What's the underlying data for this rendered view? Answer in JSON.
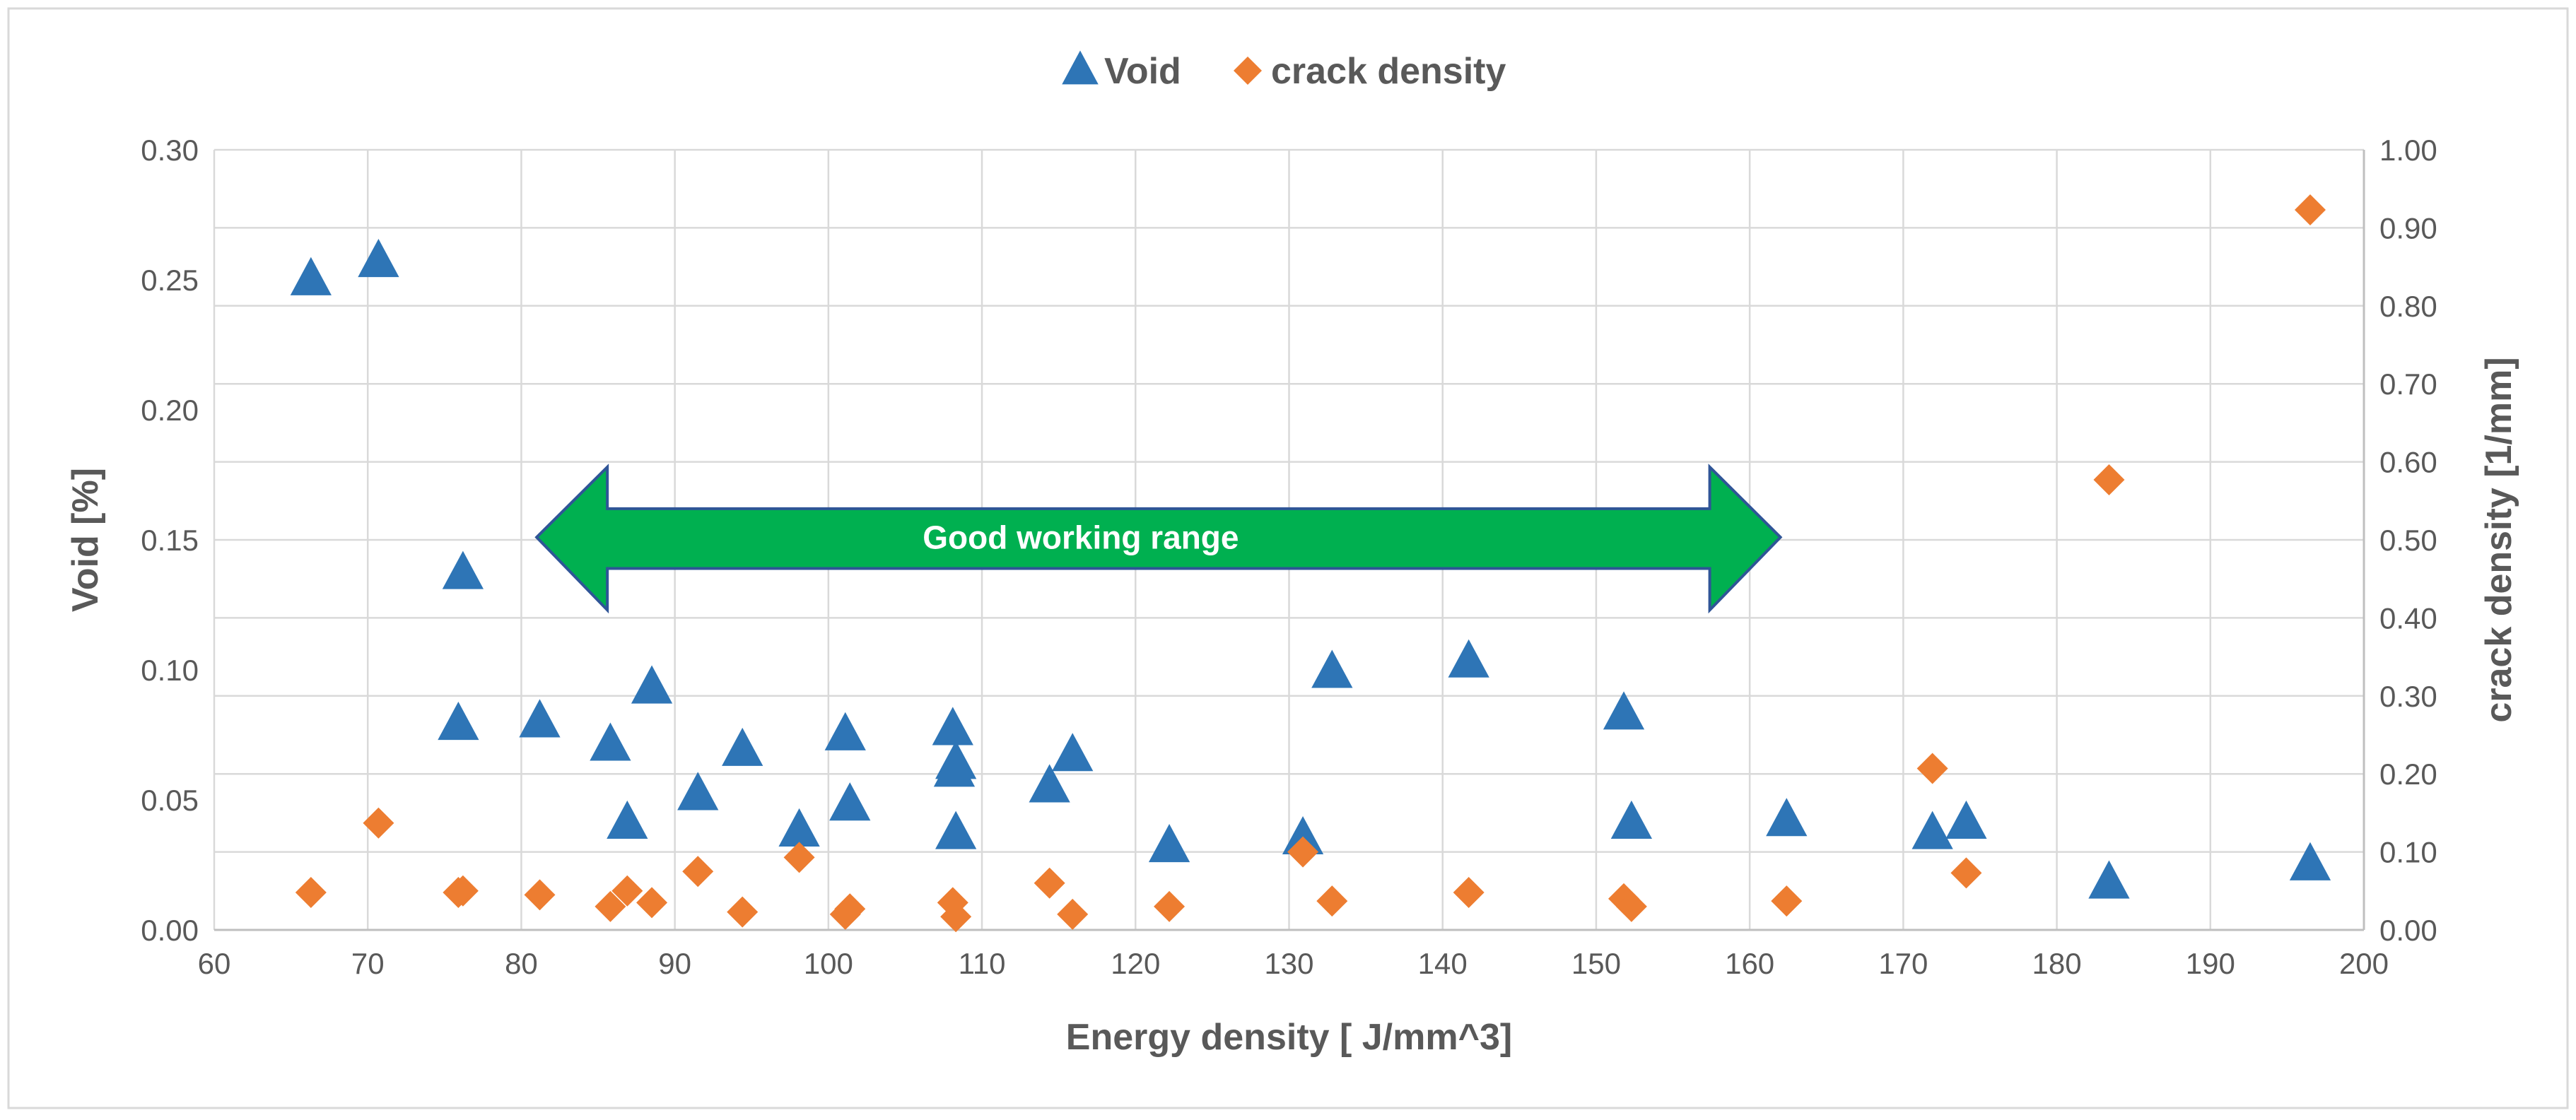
{
  "chart_data": {
    "type": "scatter",
    "title": "",
    "xlabel": "Energy density [ J/mm^3]",
    "ylabel": "Void [%]",
    "y2label": "crack density [1/mm]",
    "xlim": [
      60,
      200
    ],
    "ylim": [
      0,
      0.3
    ],
    "y2lim": [
      0,
      1.0
    ],
    "x_ticks": [
      60,
      70,
      80,
      90,
      100,
      110,
      120,
      130,
      140,
      150,
      160,
      170,
      180,
      190,
      200
    ],
    "y_ticks": [
      "0.00",
      "0.05",
      "0.10",
      "0.15",
      "0.20",
      "0.25",
      "0.30"
    ],
    "y2_ticks": [
      "0.00",
      "0.10",
      "0.20",
      "0.30",
      "0.40",
      "0.50",
      "0.60",
      "0.70",
      "0.80",
      "0.90",
      "1.00"
    ],
    "grid": true,
    "legend_position": "top-center",
    "colors": {
      "void": "#2e75b6",
      "crack": "#ed7d31",
      "arrow": "#00b050",
      "arrow_edge": "#2f5597",
      "grid": "#d9d9d9",
      "text": "#595959"
    },
    "series": [
      {
        "name": "Void",
        "axis": "left",
        "marker": "triangle",
        "points": [
          [
            66.3,
            0.25
          ],
          [
            70.7,
            0.257
          ],
          [
            76.2,
            0.137
          ],
          [
            75.9,
            0.079
          ],
          [
            81.2,
            0.08
          ],
          [
            86.9,
            0.041
          ],
          [
            85.8,
            0.071
          ],
          [
            88.5,
            0.093
          ],
          [
            91.5,
            0.052
          ],
          [
            94.4,
            0.069
          ],
          [
            98.1,
            0.038
          ],
          [
            101.1,
            0.075
          ],
          [
            101.4,
            0.048
          ],
          [
            108.3,
            0.037
          ],
          [
            108.2,
            0.061
          ],
          [
            108.3,
            0.064
          ],
          [
            108.1,
            0.077
          ],
          [
            114.4,
            0.055
          ],
          [
            115.9,
            0.067
          ],
          [
            122.2,
            0.032
          ],
          [
            130.9,
            0.035
          ],
          [
            132.8,
            0.099
          ],
          [
            141.7,
            0.103
          ],
          [
            151.8,
            0.083
          ],
          [
            152.3,
            0.041
          ],
          [
            162.4,
            0.042
          ],
          [
            171.9,
            0.037
          ],
          [
            174.1,
            0.041
          ],
          [
            183.4,
            0.018
          ],
          [
            196.5,
            0.025
          ]
        ]
      },
      {
        "name": "crack density",
        "axis": "right",
        "marker": "diamond",
        "points": [
          [
            66.3,
            0.048
          ],
          [
            70.7,
            0.137
          ],
          [
            76.2,
            0.05
          ],
          [
            75.9,
            0.048
          ],
          [
            81.2,
            0.045
          ],
          [
            85.8,
            0.03
          ],
          [
            86.9,
            0.05
          ],
          [
            88.5,
            0.035
          ],
          [
            91.5,
            0.075
          ],
          [
            94.4,
            0.023
          ],
          [
            98.1,
            0.093
          ],
          [
            101.1,
            0.02
          ],
          [
            101.4,
            0.027
          ],
          [
            108.1,
            0.035
          ],
          [
            108.3,
            0.017
          ],
          [
            114.4,
            0.06
          ],
          [
            115.9,
            0.02
          ],
          [
            122.2,
            0.03
          ],
          [
            130.9,
            0.1
          ],
          [
            132.8,
            0.037
          ],
          [
            141.7,
            0.048
          ],
          [
            151.8,
            0.04
          ],
          [
            152.3,
            0.03
          ],
          [
            162.4,
            0.037
          ],
          [
            171.9,
            0.207
          ],
          [
            174.1,
            0.073
          ],
          [
            183.4,
            0.577
          ],
          [
            196.5,
            0.923
          ]
        ]
      }
    ],
    "annotations": [
      {
        "type": "double-arrow",
        "text": "Good working range",
        "x_from": 81,
        "x_to": 162,
        "y_center": 0.151,
        "y_band": [
          0.139,
          0.162
        ],
        "y_head": [
          0.123,
          0.178
        ]
      }
    ]
  }
}
